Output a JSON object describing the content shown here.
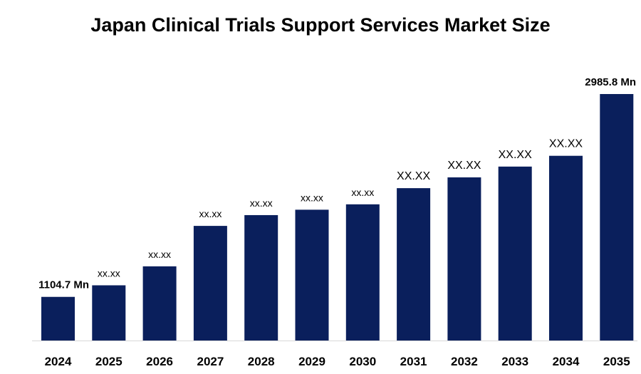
{
  "chart_data": {
    "type": "bar",
    "title": "Japan Clinical Trials Support Services Market Size",
    "xlabel": "",
    "ylabel": "",
    "categories": [
      "2024",
      "2025",
      "2026",
      "2027",
      "2028",
      "2029",
      "2030",
      "2031",
      "2032",
      "2033",
      "2034",
      "2035"
    ],
    "values": [
      1104.7,
      1212,
      1388,
      1763,
      1863,
      1913,
      1963,
      2113,
      2213,
      2313,
      2413,
      2985.8
    ],
    "data_labels": [
      "1104.7 Mn",
      "xx.xx",
      "xx.xx",
      "xx.xx",
      "xx.xx",
      "xx.xx",
      "xx.xx",
      "XX.XX",
      "XX.XX",
      "XX.XX",
      "XX.XX",
      "2985.8 Mn"
    ],
    "ylim": [
      700,
      2985.8
    ],
    "grid": false,
    "legend": "none",
    "bar_color": "#0a1f5c"
  }
}
